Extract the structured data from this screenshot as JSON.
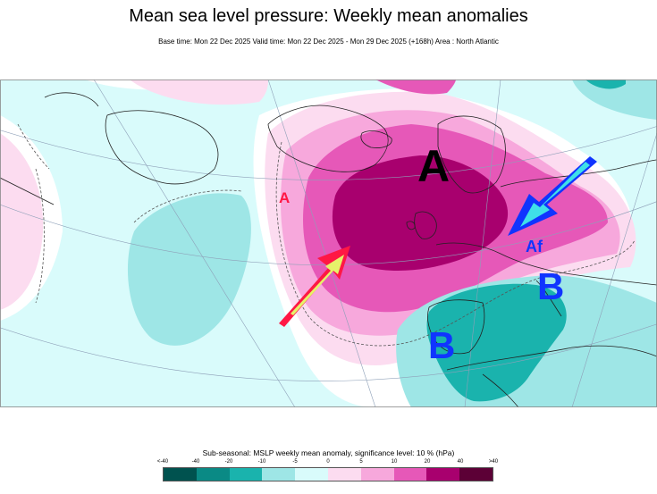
{
  "title": "Mean sea level pressure: Weekly mean anomalies",
  "subtitle": "Base time: Mon 22 Dec 2025 Valid time: Mon 22 Dec 2025 - Mon 29 Dec 2025 (+168h) Area : North Atlantic",
  "map": {
    "labels": {
      "high_main": "A",
      "high_small": "A",
      "high_italy": "Af",
      "low_iberia": "B",
      "low_med": "B"
    },
    "colors": {
      "arrow_red": "#ff1744",
      "arrow_yellow": "#e6f26a",
      "arrow_blue": "#1034ff",
      "arrow_cyan": "#3fe0e8"
    },
    "icons": [
      "arrow-red-icon",
      "arrow-blue-icon"
    ]
  },
  "legend": {
    "title": "Sub-seasonal: MSLP weekly mean anomaly, significance level: 10 % (hPa)",
    "ticks": [
      "<-40",
      "-40",
      "-20",
      "-10",
      "-5",
      "0",
      "5",
      "10",
      "20",
      "40",
      ">40"
    ],
    "colors": [
      "#00524f",
      "#0a8a85",
      "#1ab3ad",
      "#9ee6e6",
      "#d9fbfb",
      "#fcdcf0",
      "#f7a8dc",
      "#e658b8",
      "#a8006e",
      "#5c0036"
    ]
  }
}
